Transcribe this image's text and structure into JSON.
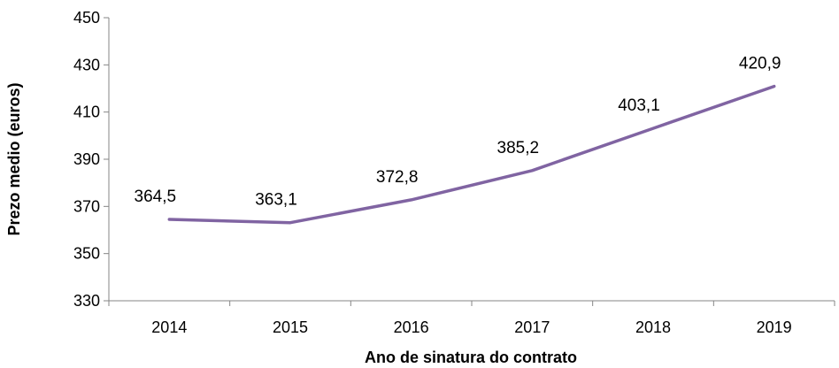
{
  "chart_data": {
    "type": "line",
    "title": "",
    "xlabel": "Ano de sinatura do contrato",
    "ylabel": "Prezo medio (euros)",
    "categories": [
      "2014",
      "2015",
      "2016",
      "2017",
      "2018",
      "2019"
    ],
    "series": [
      {
        "values": [
          364.5,
          363.1,
          372.8,
          385.2,
          403.1,
          420.9
        ],
        "labels": [
          "364,5",
          "363,1",
          "372,8",
          "385,2",
          "403,1",
          "420,9"
        ],
        "color": "#8064a2"
      }
    ],
    "ylim": [
      330,
      450
    ],
    "yticks": [
      "330",
      "350",
      "370",
      "390",
      "410",
      "430",
      "450"
    ],
    "grid": false,
    "legend": "none"
  }
}
